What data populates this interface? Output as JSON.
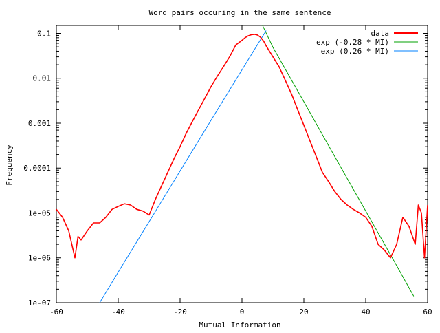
{
  "chart_data": {
    "type": "line",
    "title": "Word pairs occuring in the same sentence",
    "xlabel": "Mutual Information",
    "ylabel": "Frequency",
    "xlim": [
      -60,
      60
    ],
    "ylim": [
      1e-07,
      0.15
    ],
    "y_scale": "log",
    "grid": false,
    "legend_position": "top-right",
    "x_ticks": [
      -60,
      -40,
      -20,
      0,
      20,
      40,
      60
    ],
    "x_tick_labels": [
      "-60",
      "-40",
      "-20",
      "0",
      "20",
      "40",
      "60"
    ],
    "y_ticks": [
      1e-07,
      1e-06,
      1e-05,
      0.0001,
      0.001,
      0.01,
      0.1
    ],
    "y_tick_labels": [
      "1e-07",
      "1e-06",
      "1e-05",
      "0.0001",
      "0.001",
      "0.01",
      "0.1"
    ],
    "series": [
      {
        "name": "data",
        "color": "#ff0000",
        "x": [
          -60,
          -58,
          -56,
          -55,
          -54,
          -53,
          -52,
          -50,
          -48,
          -46,
          -44,
          -42,
          -40,
          -38,
          -36,
          -34,
          -32,
          -30,
          -28,
          -26,
          -24,
          -22,
          -20,
          -18,
          -16,
          -14,
          -12,
          -10,
          -8,
          -6,
          -4,
          -2,
          0,
          1,
          2,
          3,
          4,
          5,
          6,
          7,
          8,
          10,
          12,
          14,
          16,
          18,
          20,
          22,
          24,
          26,
          28,
          30,
          32,
          34,
          36,
          38,
          40,
          42,
          44,
          46,
          48,
          50,
          52,
          54,
          56,
          57,
          58,
          59,
          60
        ],
        "y": [
          1.2e-05,
          8e-06,
          4e-06,
          2e-06,
          1e-06,
          3e-06,
          2.5e-06,
          4e-06,
          6e-06,
          6e-06,
          8e-06,
          1.2e-05,
          1.4e-05,
          1.6e-05,
          1.5e-05,
          1.2e-05,
          1.1e-05,
          9e-06,
          2e-05,
          4e-05,
          8e-05,
          0.00016,
          0.0003,
          0.0006,
          0.0011,
          0.002,
          0.0036,
          0.0065,
          0.011,
          0.018,
          0.03,
          0.055,
          0.07,
          0.08,
          0.088,
          0.093,
          0.095,
          0.092,
          0.082,
          0.067,
          0.05,
          0.03,
          0.018,
          0.009,
          0.0045,
          0.002,
          0.0009,
          0.0004,
          0.00018,
          8e-05,
          5e-05,
          3e-05,
          2e-05,
          1.5e-05,
          1.2e-05,
          1e-05,
          8e-06,
          5e-06,
          2e-06,
          1.5e-06,
          1e-06,
          2e-06,
          8e-06,
          5e-06,
          2e-06,
          1.5e-05,
          1e-05,
          1e-06,
          1.5e-05
        ]
      },
      {
        "name": "exp (-0.28 * MI)",
        "color": "#00a000",
        "x": [
          6.5,
          10,
          20,
          30,
          40,
          50,
          55.5
        ],
        "y": [
          0.157,
          0.049,
          0.003,
          0.00018,
          1.1e-05,
          6.7e-07,
          1.4e-07
        ]
      },
      {
        "name": "exp (0.26 * MI)",
        "color": "#0080ff",
        "x": [
          -46,
          -40,
          -30,
          -20,
          -10,
          0,
          7.8
        ],
        "y": [
          1e-07,
          4.8e-07,
          6.4e-06,
          8.6e-05,
          0.00116,
          0.0154,
          0.115
        ]
      }
    ]
  }
}
